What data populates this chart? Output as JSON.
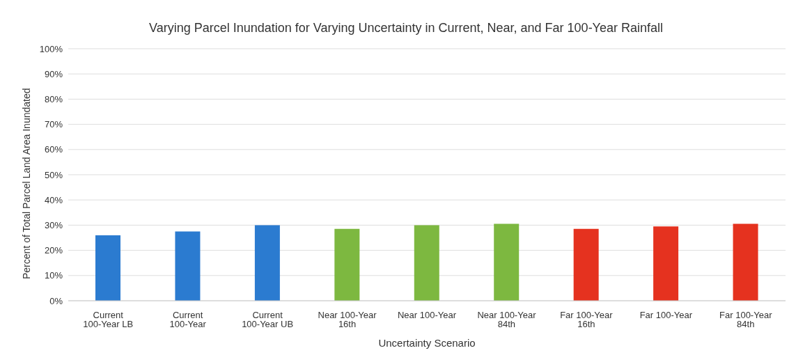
{
  "chart_data": {
    "type": "bar",
    "title": "Varying Parcel Inundation for Varying Uncertainty in Current, Near, and Far 100-Year Rainfall",
    "xlabel": "Uncertainty Scenario",
    "ylabel": "Percent of Total Parcel Land Area Inundated",
    "categories": [
      "Current 100-Year LB",
      "Current 100-Year",
      "Current 100-Year UB",
      "Near 100-Year 16th",
      "Near 100-Year",
      "Near 100-Year 84th",
      "Far 100-Year 16th",
      "Far 100-Year",
      "Far 100-Year 84th"
    ],
    "values": [
      26,
      27.5,
      30,
      28.5,
      30,
      30.5,
      28.5,
      29.5,
      30.5
    ],
    "colors": [
      "#2b7bd0",
      "#2b7bd0",
      "#2b7bd0",
      "#7db840",
      "#7db840",
      "#7db840",
      "#e5321f",
      "#e5321f",
      "#e5321f"
    ],
    "ylim": [
      0,
      100
    ],
    "yticks": [
      {
        "value": 0,
        "label": "0%"
      },
      {
        "value": 10,
        "label": "10%"
      },
      {
        "value": 20,
        "label": "20%"
      },
      {
        "value": 30,
        "label": "30%"
      },
      {
        "value": 40,
        "label": "40%"
      },
      {
        "value": 50,
        "label": "50%"
      },
      {
        "value": 60,
        "label": "60%"
      },
      {
        "value": 70,
        "label": "70%"
      },
      {
        "value": 80,
        "label": "80%"
      },
      {
        "value": 90,
        "label": "90%"
      },
      {
        "value": 100,
        "label": "100%"
      }
    ],
    "grid": "y",
    "legend": false
  }
}
